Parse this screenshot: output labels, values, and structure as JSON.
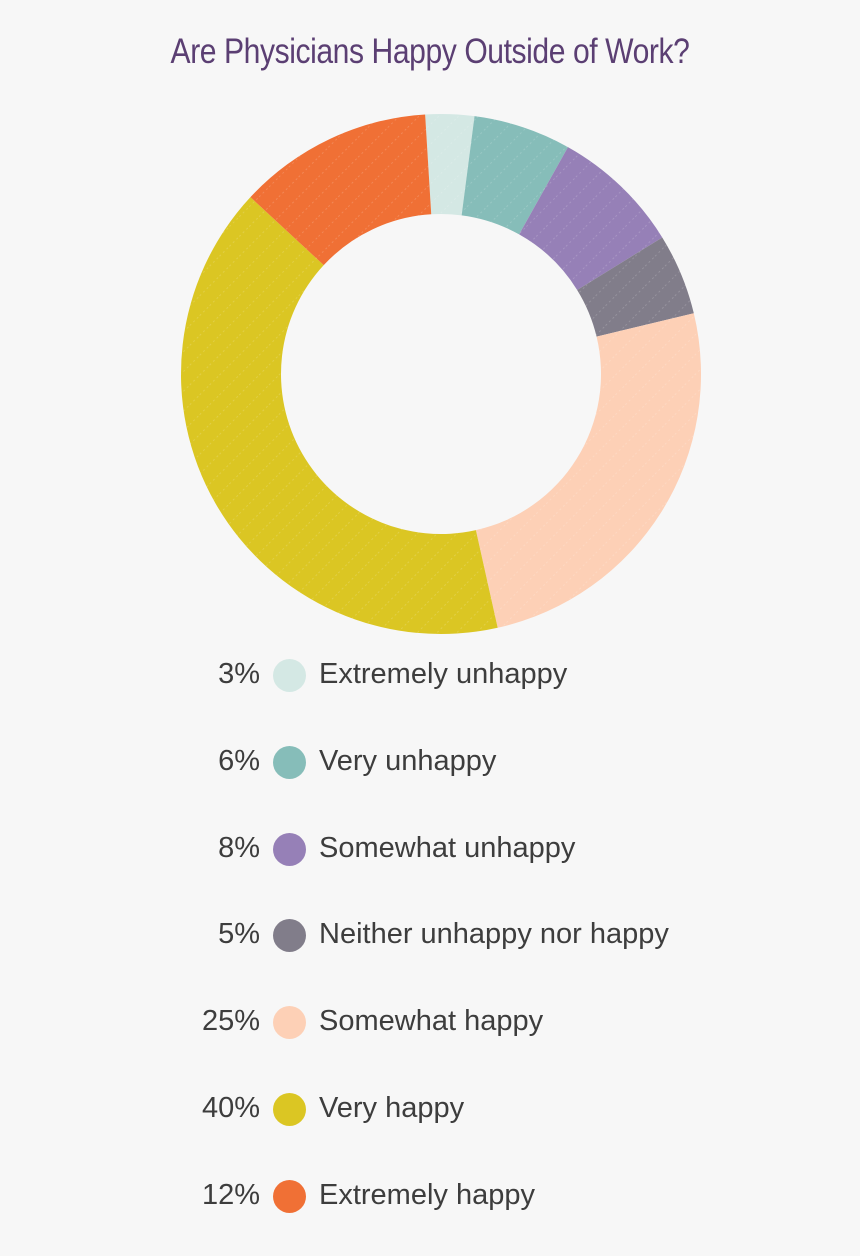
{
  "chart_data": {
    "type": "pie",
    "title": "Are Physicians Happy Outside of Work?",
    "categories": [
      "Extremely unhappy",
      "Very unhappy",
      "Somewhat unhappy",
      "Neither unhappy nor happy",
      "Somewhat happy",
      "Very happy",
      "Extremely happy"
    ],
    "values": [
      3,
      6,
      8,
      5,
      25,
      40,
      12
    ],
    "value_labels": [
      "3%",
      "6%",
      "8%",
      "5%",
      "25%",
      "40%",
      "12%"
    ],
    "colors": [
      "#d4e8e4",
      "#86bdb9",
      "#9680b7",
      "#817d8a",
      "#fdd0b6",
      "#dbc623",
      "#f07035"
    ],
    "legend_position": "bottom"
  }
}
